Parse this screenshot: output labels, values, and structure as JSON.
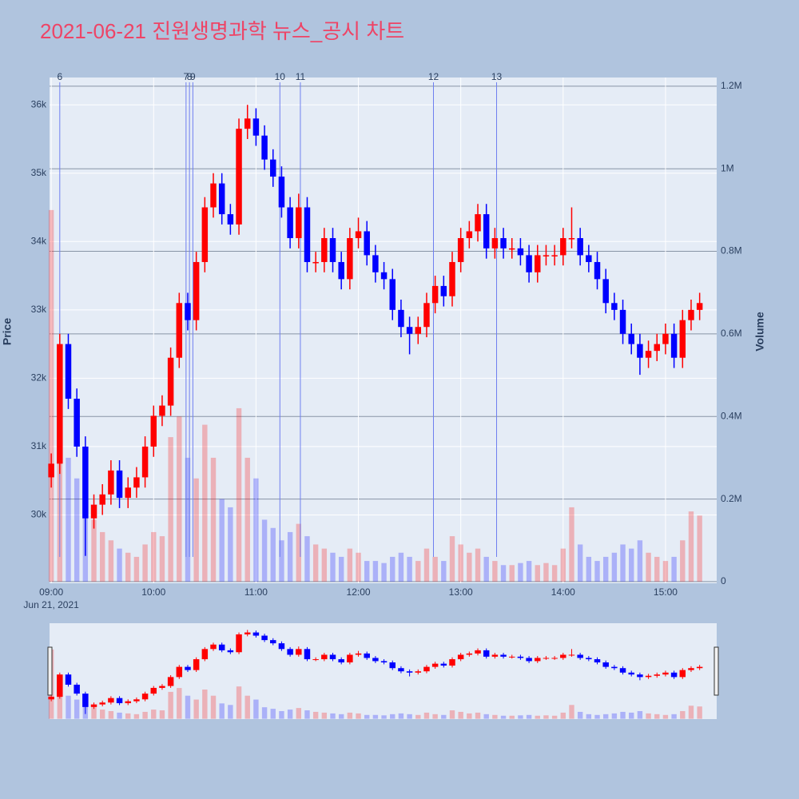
{
  "chart_data": {
    "type": "candlestick",
    "title": "2021-06-21 진원생명과학 뉴스_공시 차트",
    "ylabel": "Price",
    "y2label": "Volume",
    "increasing_color": "#ff0000",
    "decreasing_color": "#0000ff",
    "x": [
      "09:00",
      "09:05",
      "09:10",
      "09:15",
      "09:20",
      "09:25",
      "09:30",
      "09:35",
      "09:40",
      "09:45",
      "09:50",
      "09:55",
      "10:00",
      "10:05",
      "10:10",
      "10:15",
      "10:20",
      "10:25",
      "10:30",
      "10:35",
      "10:40",
      "10:45",
      "10:50",
      "10:55",
      "11:00",
      "11:05",
      "11:10",
      "11:15",
      "11:20",
      "11:25",
      "11:30",
      "11:35",
      "11:40",
      "11:45",
      "11:50",
      "11:55",
      "12:00",
      "12:05",
      "12:10",
      "12:15",
      "12:20",
      "12:25",
      "12:30",
      "12:35",
      "12:40",
      "12:45",
      "12:50",
      "12:55",
      "13:00",
      "13:05",
      "13:10",
      "13:15",
      "13:20",
      "13:25",
      "13:30",
      "13:35",
      "13:40",
      "13:45",
      "13:50",
      "13:55",
      "14:00",
      "14:05",
      "14:10",
      "14:15",
      "14:20",
      "14:25",
      "14:30",
      "14:35",
      "14:40",
      "14:45",
      "14:50",
      "14:55",
      "15:00",
      "15:05",
      "15:10",
      "15:15",
      "15:20"
    ],
    "open": [
      30550,
      30750,
      32500,
      31700,
      31000,
      29950,
      30150,
      30300,
      30650,
      30250,
      30400,
      30550,
      31000,
      31450,
      31600,
      32300,
      33100,
      32850,
      33700,
      34500,
      34850,
      34400,
      34250,
      35650,
      35800,
      35550,
      35200,
      34950,
      34500,
      34050,
      34500,
      33700,
      33700,
      34050,
      33700,
      33450,
      34050,
      34150,
      33800,
      33550,
      33450,
      33000,
      32750,
      32650,
      32750,
      33100,
      33350,
      33200,
      33700,
      34050,
      34150,
      34400,
      33900,
      34050,
      33900,
      33900,
      33800,
      33550,
      33800,
      33800,
      33800,
      34050,
      34050,
      33800,
      33700,
      33450,
      33100,
      33000,
      32650,
      32500,
      32300,
      32400,
      32500,
      32650,
      32300,
      32850,
      33000
    ],
    "high": [
      30900,
      32650,
      32650,
      31850,
      31150,
      30300,
      30450,
      30800,
      30800,
      30550,
      30700,
      31150,
      31600,
      31750,
      32450,
      33250,
      33250,
      33850,
      34650,
      35000,
      35000,
      34550,
      35800,
      36000,
      35950,
      35700,
      35350,
      35100,
      34650,
      34700,
      34650,
      33850,
      34200,
      34200,
      33850,
      34200,
      34350,
      34300,
      33950,
      33700,
      33600,
      33150,
      32900,
      32900,
      33250,
      33500,
      33500,
      33850,
      34200,
      34300,
      34550,
      34550,
      34200,
      34200,
      34050,
      34050,
      33950,
      33950,
      33950,
      33950,
      34200,
      34500,
      34200,
      33950,
      33850,
      33600,
      33250,
      33150,
      32800,
      32650,
      32550,
      32650,
      32800,
      32800,
      33000,
      33150,
      33250
    ],
    "low": [
      30400,
      30600,
      31550,
      30850,
      29400,
      29800,
      30000,
      30150,
      30100,
      30100,
      30250,
      30400,
      30850,
      31300,
      31450,
      32150,
      32700,
      32700,
      33550,
      34350,
      34250,
      34100,
      34100,
      35500,
      35400,
      35050,
      34800,
      34350,
      33900,
      33900,
      33550,
      33550,
      33550,
      33550,
      33300,
      33300,
      33900,
      33650,
      33400,
      33300,
      32850,
      32600,
      32350,
      32500,
      32600,
      32950,
      33050,
      33050,
      33550,
      33900,
      34000,
      33750,
      33750,
      33750,
      33750,
      33650,
      33400,
      33400,
      33650,
      33650,
      33650,
      33900,
      33650,
      33550,
      33300,
      32950,
      32850,
      32500,
      32350,
      32050,
      32150,
      32250,
      32350,
      32150,
      32150,
      32700,
      32850
    ],
    "close": [
      30750,
      32500,
      31700,
      31000,
      29950,
      30150,
      30300,
      30650,
      30250,
      30400,
      30550,
      31000,
      31450,
      31600,
      32300,
      33100,
      32850,
      33700,
      34500,
      34850,
      34400,
      34250,
      35650,
      35800,
      35550,
      35200,
      34950,
      34500,
      34050,
      34500,
      33700,
      33700,
      34050,
      33700,
      33450,
      34050,
      34150,
      33800,
      33550,
      33450,
      33000,
      32750,
      32650,
      32750,
      33100,
      33350,
      33200,
      33700,
      34050,
      34150,
      34400,
      33900,
      34050,
      33900,
      33900,
      33800,
      33550,
      33800,
      33800,
      33800,
      34050,
      34050,
      33800,
      33700,
      33450,
      33100,
      33000,
      32650,
      32500,
      32300,
      32400,
      32500,
      32650,
      32300,
      32850,
      33000,
      33100
    ],
    "volume": [
      900000,
      450000,
      300000,
      250000,
      200000,
      150000,
      120000,
      100000,
      80000,
      70000,
      60000,
      90000,
      120000,
      110000,
      350000,
      400000,
      300000,
      250000,
      380000,
      300000,
      200000,
      180000,
      420000,
      300000,
      250000,
      150000,
      130000,
      100000,
      120000,
      140000,
      110000,
      90000,
      80000,
      70000,
      60000,
      80000,
      70000,
      50000,
      50000,
      45000,
      60000,
      70000,
      60000,
      50000,
      80000,
      60000,
      50000,
      110000,
      90000,
      70000,
      80000,
      60000,
      50000,
      40000,
      40000,
      45000,
      50000,
      40000,
      45000,
      40000,
      80000,
      180000,
      90000,
      60000,
      50000,
      60000,
      70000,
      90000,
      80000,
      100000,
      70000,
      60000,
      50000,
      60000,
      100000,
      170000,
      160000
    ],
    "xlim": [
      "08:59",
      "15:30"
    ],
    "xticks": [
      "09:00",
      "10:00",
      "11:00",
      "12:00",
      "13:00",
      "14:00",
      "15:00"
    ],
    "x_date_label": "Jun 21, 2021",
    "ylim": [
      29000,
      36400
    ],
    "yticks": [
      {
        "value": 30000,
        "label": "30k"
      },
      {
        "value": 31000,
        "label": "31k"
      },
      {
        "value": 32000,
        "label": "32k"
      },
      {
        "value": 33000,
        "label": "33k"
      },
      {
        "value": 34000,
        "label": "34k"
      },
      {
        "value": 35000,
        "label": "35k"
      },
      {
        "value": 36000,
        "label": "36k"
      }
    ],
    "y2lim": [
      -4000,
      1221000
    ],
    "y2ticks": [
      0,
      {
        "value": 200000,
        "label": "0.2M"
      },
      {
        "value": 400000,
        "label": "0.4M"
      },
      {
        "value": 600000,
        "label": "0.6M"
      },
      {
        "value": 800000,
        "label": "0.8M"
      },
      {
        "value": 1000000,
        "label": "1M"
      },
      {
        "value": 1200000,
        "label": "1.2M"
      }
    ],
    "events": [
      {
        "label": "6",
        "x": "09:05"
      },
      {
        "label": "7",
        "x": "10:19"
      },
      {
        "label": "8",
        "x": "10:21"
      },
      {
        "label": "9",
        "x": "10:23"
      },
      {
        "label": "10",
        "x": "11:14"
      },
      {
        "label": "11",
        "x": "11:26"
      },
      {
        "label": "12",
        "x": "12:44"
      },
      {
        "label": "13",
        "x": "13:21"
      }
    ],
    "grid": true,
    "rangeslider": true
  }
}
